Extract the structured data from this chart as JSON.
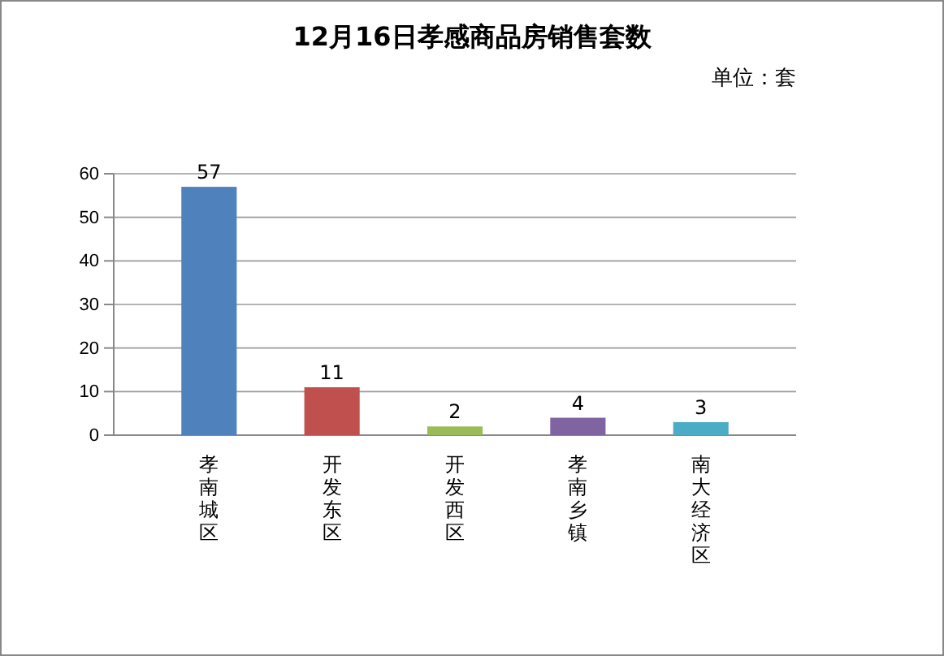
{
  "chart_data": {
    "type": "bar",
    "title": "12月16日孝感商品房销售套数",
    "subtitle": "单位：套",
    "categories": [
      "孝南城区",
      "开发东区",
      "开发西区",
      "孝南乡镇",
      "南大经济区"
    ],
    "values": [
      57,
      11,
      2,
      4,
      3
    ],
    "colors": [
      "#4f81bd",
      "#c0504d",
      "#9bbb59",
      "#8064a2",
      "#4bacc6"
    ],
    "ylim": [
      0,
      60
    ],
    "yticks": [
      0,
      10,
      20,
      30,
      40,
      50,
      60
    ],
    "grid": "y",
    "data_labels": true
  }
}
